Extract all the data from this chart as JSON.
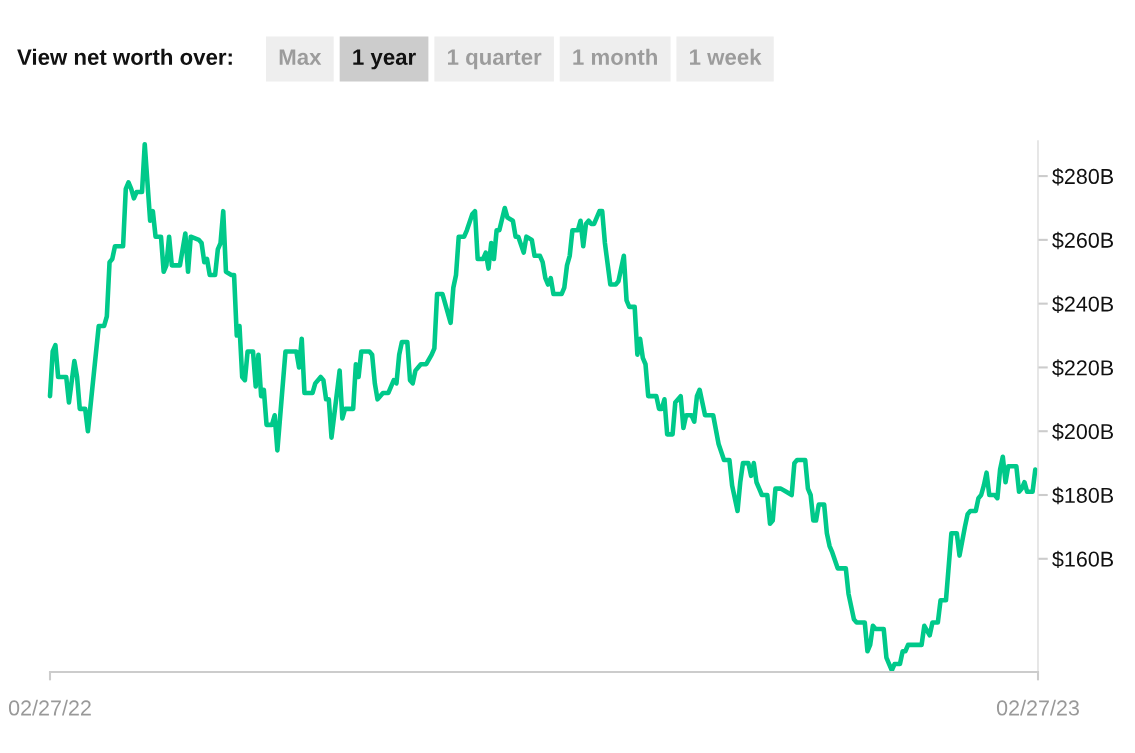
{
  "chart_data": {
    "type": "line",
    "title": "View net worth over:",
    "annotations": [
      "Max",
      "1 year",
      "1 quarter",
      "1 month",
      "1 week"
    ],
    "x": [
      "2022-02-27",
      "2022-02-28",
      "2022-03-01",
      "2022-03-02",
      "2022-03-05",
      "2022-03-06",
      "2022-03-08",
      "2022-03-09",
      "2022-03-10",
      "2022-03-12",
      "2022-03-13",
      "2022-03-17",
      "2022-03-19",
      "2022-03-20",
      "2022-03-21",
      "2022-03-22",
      "2022-03-23",
      "2022-03-26",
      "2022-03-27",
      "2022-03-28",
      "2022-03-29",
      "2022-03-30",
      "2022-03-31",
      "2022-04-02",
      "2022-04-03",
      "2022-04-05",
      "2022-04-06",
      "2022-04-07",
      "2022-04-09",
      "2022-04-10",
      "2022-04-11",
      "2022-04-12",
      "2022-04-13",
      "2022-04-16",
      "2022-04-18",
      "2022-04-19",
      "2022-04-20",
      "2022-04-23",
      "2022-04-24",
      "2022-04-25",
      "2022-04-26",
      "2022-04-27",
      "2022-04-29",
      "2022-04-30",
      "2022-05-01",
      "2022-05-02",
      "2022-05-03",
      "2022-05-05",
      "2022-05-06",
      "2022-05-07",
      "2022-05-08",
      "2022-05-09",
      "2022-05-10",
      "2022-05-11",
      "2022-05-13",
      "2022-05-14",
      "2022-05-15",
      "2022-05-16",
      "2022-05-17",
      "2022-05-18",
      "2022-05-20",
      "2022-05-21",
      "2022-05-22",
      "2022-05-25",
      "2022-05-29",
      "2022-05-30",
      "2022-05-31",
      "2022-06-01",
      "2022-06-04",
      "2022-06-05",
      "2022-06-06",
      "2022-06-07",
      "2022-06-08",
      "2022-06-09",
      "2022-06-10",
      "2022-06-11",
      "2022-06-14",
      "2022-06-15",
      "2022-06-16",
      "2022-06-19",
      "2022-06-20",
      "2022-06-21",
      "2022-06-22",
      "2022-06-25",
      "2022-06-26",
      "2022-06-27",
      "2022-06-28",
      "2022-06-30",
      "2022-07-02",
      "2022-07-04",
      "2022-07-05",
      "2022-07-06",
      "2022-07-07",
      "2022-07-09",
      "2022-07-10",
      "2022-07-11",
      "2022-07-12",
      "2022-07-14",
      "2022-07-16",
      "2022-07-18",
      "2022-07-19",
      "2022-07-20",
      "2022-07-22",
      "2022-07-25",
      "2022-07-26",
      "2022-07-27",
      "2022-07-28",
      "2022-07-30",
      "2022-07-31",
      "2022-08-02",
      "2022-08-03",
      "2022-08-04",
      "2022-08-06",
      "2022-08-07",
      "2022-08-08",
      "2022-08-09",
      "2022-08-10",
      "2022-08-11",
      "2022-08-12",
      "2022-08-14",
      "2022-08-15",
      "2022-08-17",
      "2022-08-18",
      "2022-08-19",
      "2022-08-21",
      "2022-08-22",
      "2022-08-24",
      "2022-08-25",
      "2022-08-27",
      "2022-08-28",
      "2022-08-29",
      "2022-08-30",
      "2022-08-31",
      "2022-09-01",
      "2022-09-04",
      "2022-09-05",
      "2022-09-06",
      "2022-09-07",
      "2022-09-08",
      "2022-09-10",
      "2022-09-11",
      "2022-09-12",
      "2022-09-13",
      "2022-09-14",
      "2022-09-15",
      "2022-09-16",
      "2022-09-18",
      "2022-09-19",
      "2022-09-20",
      "2022-09-22",
      "2022-09-24",
      "2022-09-25",
      "2022-09-27",
      "2022-09-28",
      "2022-09-29",
      "2022-10-01",
      "2022-10-02",
      "2022-10-03",
      "2022-10-04",
      "2022-10-05",
      "2022-10-06",
      "2022-10-09",
      "2022-10-10",
      "2022-10-11",
      "2022-10-12",
      "2022-10-13",
      "2022-10-15",
      "2022-10-16",
      "2022-10-18",
      "2022-10-19",
      "2022-10-20",
      "2022-10-22",
      "2022-10-23",
      "2022-10-24",
      "2022-10-25",
      "2022-10-27",
      "2022-10-30",
      "2022-11-01",
      "2022-11-03",
      "2022-11-05",
      "2022-11-06",
      "2022-11-08",
      "2022-11-09",
      "2022-11-10",
      "2022-11-12",
      "2022-11-13",
      "2022-11-14",
      "2022-11-15",
      "2022-11-16",
      "2022-11-17",
      "2022-11-19",
      "2022-11-20",
      "2022-11-21",
      "2022-11-22",
      "2022-11-24",
      "2022-11-26",
      "2022-11-28",
      "2022-11-29",
      "2022-11-30",
      "2022-12-03",
      "2022-12-04",
      "2022-12-05",
      "2022-12-06",
      "2022-12-07",
      "2022-12-08",
      "2022-12-10",
      "2022-12-11",
      "2022-12-12",
      "2022-12-13",
      "2022-12-15",
      "2022-12-18",
      "2022-12-19",
      "2022-12-21",
      "2022-12-22",
      "2022-12-25",
      "2022-12-26",
      "2022-12-27",
      "2022-12-28",
      "2022-12-29",
      "2023-01-01",
      "2023-01-02",
      "2023-01-03",
      "2023-01-04",
      "2023-01-05",
      "2023-01-07",
      "2023-01-08",
      "2023-01-09",
      "2023-01-10",
      "2023-01-15",
      "2023-01-16",
      "2023-01-18",
      "2023-01-19",
      "2023-01-21",
      "2023-01-22",
      "2023-01-24",
      "2023-01-26",
      "2023-01-28",
      "2023-01-29",
      "2023-01-31",
      "2023-02-01",
      "2023-02-02",
      "2023-02-04",
      "2023-02-05",
      "2023-02-06",
      "2023-02-07",
      "2023-02-08",
      "2023-02-09",
      "2023-02-11",
      "2023-02-12",
      "2023-02-13",
      "2023-02-14",
      "2023-02-15",
      "2023-02-16",
      "2023-02-19",
      "2023-02-20",
      "2023-02-21",
      "2023-02-22",
      "2023-02-23",
      "2023-02-25",
      "2023-02-26"
    ],
    "series": [
      {
        "color": "#00c98a",
        "values": [
          211,
          225,
          227,
          217,
          217,
          209,
          222,
          217,
          207,
          207,
          200,
          233,
          233,
          236,
          253,
          254,
          258,
          258,
          276,
          278,
          276,
          273,
          275,
          275,
          290,
          266,
          269,
          261,
          261,
          250,
          252,
          261,
          252,
          252,
          262,
          250,
          261,
          260,
          259,
          253,
          254,
          249,
          249,
          257,
          259,
          269,
          250,
          249,
          249,
          230,
          233,
          217,
          216,
          225,
          225,
          214,
          224,
          211,
          213,
          202,
          202,
          205,
          194,
          225,
          225,
          220,
          229,
          212,
          212,
          215,
          216,
          217,
          216,
          210,
          210,
          198,
          219,
          204,
          207,
          207,
          221,
          217,
          225,
          225,
          224,
          215,
          210,
          212,
          212,
          216,
          215,
          224,
          228,
          228,
          216,
          215,
          219,
          221,
          221,
          224,
          226,
          243,
          243,
          234,
          245,
          249,
          261,
          261,
          263,
          268,
          269,
          254,
          254,
          256,
          251,
          259,
          254,
          263,
          263,
          270,
          267,
          266,
          261,
          261,
          256,
          261,
          260,
          255,
          255,
          253,
          248,
          246,
          248,
          243,
          243,
          245,
          252,
          255,
          263,
          263,
          266,
          258,
          265,
          266,
          265,
          265,
          269,
          269,
          259,
          246,
          246,
          247,
          255,
          241,
          239,
          239,
          224,
          229,
          223,
          221,
          211,
          211,
          207,
          207,
          210,
          199,
          199,
          209,
          211,
          201,
          205,
          205,
          203,
          211,
          213,
          205,
          205,
          196,
          191,
          191,
          183,
          175,
          184,
          190,
          190,
          186,
          190,
          184,
          182,
          180,
          180,
          171,
          172,
          182,
          182,
          181,
          180,
          190,
          191,
          191,
          182,
          180,
          172,
          172,
          177,
          177,
          168,
          164,
          162,
          157,
          157,
          149,
          141,
          140,
          140,
          131,
          133,
          139,
          138,
          138,
          129,
          127,
          125,
          127,
          127,
          131,
          131,
          133,
          133,
          139,
          136,
          140,
          140,
          147,
          147,
          168,
          168,
          161,
          170,
          174,
          175,
          175,
          179,
          180,
          183,
          187,
          180,
          180,
          179,
          188,
          192,
          184,
          189,
          189,
          181,
          182,
          184,
          181,
          181,
          188
        ]
      }
    ],
    "xlim": [
      "2022-02-27",
      "2023-02-27"
    ],
    "xticks": [
      {
        "value": "2022-02-27",
        "label": "02/27/22"
      },
      {
        "value": "2023-02-27",
        "label": "02/27/23"
      }
    ],
    "ylim": [
      124.5,
      291
    ],
    "yticks": [
      {
        "value": 160,
        "label": "$160B"
      },
      {
        "value": 180,
        "label": "$180B"
      },
      {
        "value": 200,
        "label": "$200B"
      },
      {
        "value": 220,
        "label": "$220B"
      },
      {
        "value": 240,
        "label": "$240B"
      },
      {
        "value": 260,
        "label": "$260B"
      },
      {
        "value": 280,
        "label": "$280B"
      }
    ]
  }
}
